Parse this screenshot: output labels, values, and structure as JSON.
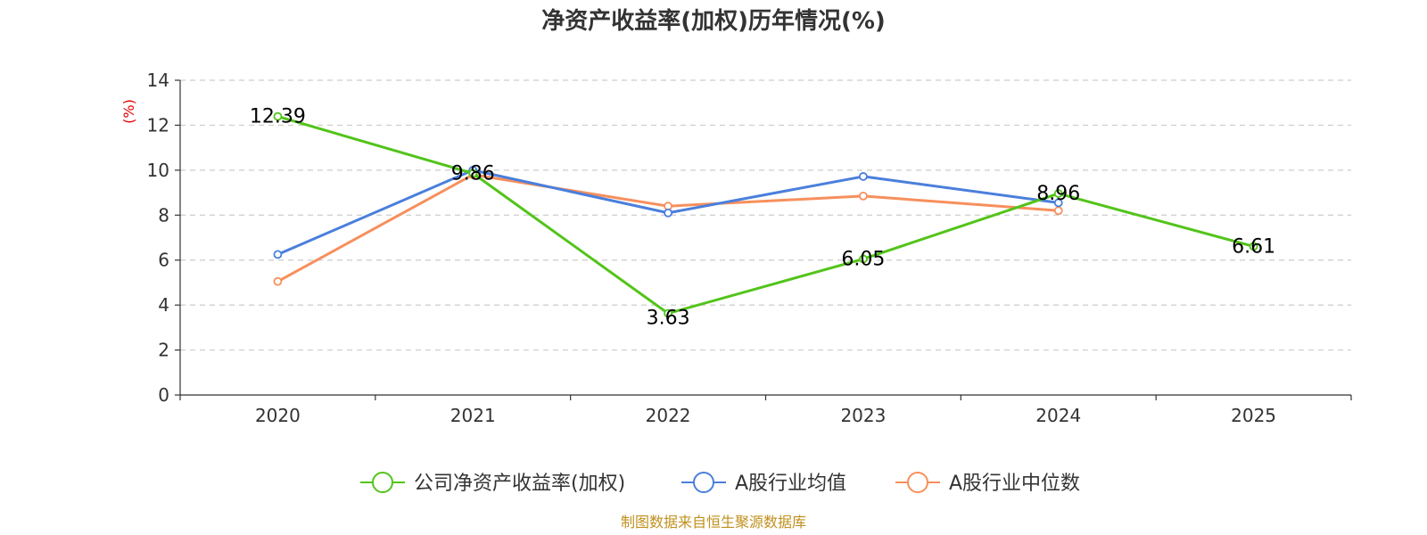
{
  "chart_data": {
    "type": "line",
    "title": "净资产收益率(加权)历年情况(%)",
    "ylabel": "(%)",
    "xlabel": "",
    "categories": [
      "2020",
      "2021",
      "2022",
      "2023",
      "2024",
      "2025"
    ],
    "ylim": [
      0,
      14
    ],
    "yticks": [
      0,
      2,
      4,
      6,
      8,
      10,
      12,
      14
    ],
    "grid": true,
    "legend_position": "bottom-center",
    "series": [
      {
        "name": "公司净资产收益率(加权)",
        "color": "#52c41a",
        "values": [
          12.39,
          9.86,
          3.63,
          6.05,
          8.96,
          6.61
        ],
        "labels": [
          "12.39",
          "9.86",
          "3.63",
          "6.05",
          "8.96",
          "6.61"
        ]
      },
      {
        "name": "A股行业均值",
        "color": "#4a7fdc",
        "values": [
          6.25,
          10.0,
          8.1,
          9.72,
          8.55,
          null
        ]
      },
      {
        "name": "A股行业中位数",
        "color": "#f78f5c",
        "values": [
          5.05,
          9.8,
          8.4,
          8.85,
          8.2,
          null
        ]
      }
    ]
  },
  "source": "制图数据来自恒生聚源数据库"
}
